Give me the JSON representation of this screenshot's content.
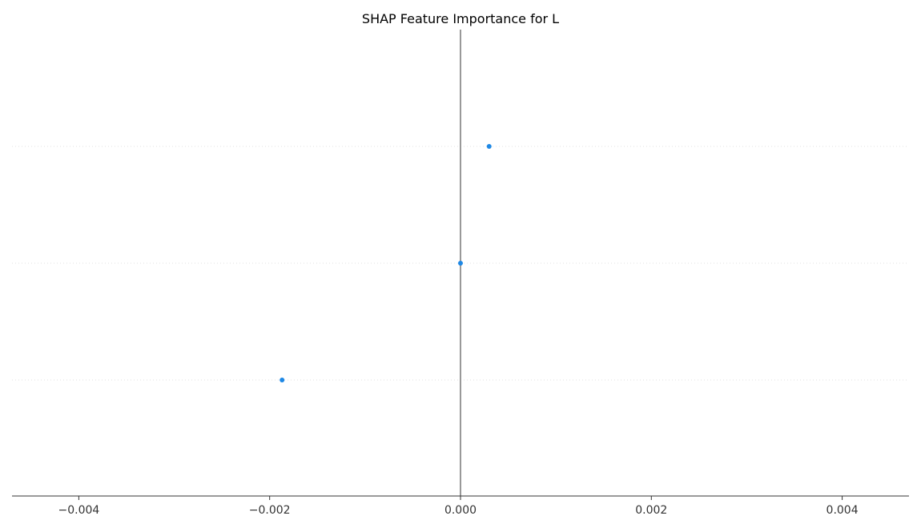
{
  "chart_data": {
    "type": "scatter",
    "title": "SHAP Feature Importance for L",
    "xlabel": "",
    "ylabel": "",
    "xlim": [
      -0.0047,
      0.0047
    ],
    "xticks": [
      -0.004,
      -0.002,
      0.0,
      0.002,
      0.004
    ],
    "xtick_labels": [
      "−0.004",
      "−0.002",
      "0.000",
      "0.002",
      "0.004"
    ],
    "rows": 3,
    "points": [
      {
        "row": 0,
        "x": 0.0003
      },
      {
        "row": 1,
        "x": 0.0
      },
      {
        "row": 2,
        "x": -0.00187
      }
    ],
    "zero_line": 0.0,
    "grid": "horizontal dotted row guides",
    "colors": {
      "point": "#1e88e5",
      "zero_line": "#999999",
      "axis": "#333333",
      "row_guide": "#e0e0e0"
    }
  }
}
